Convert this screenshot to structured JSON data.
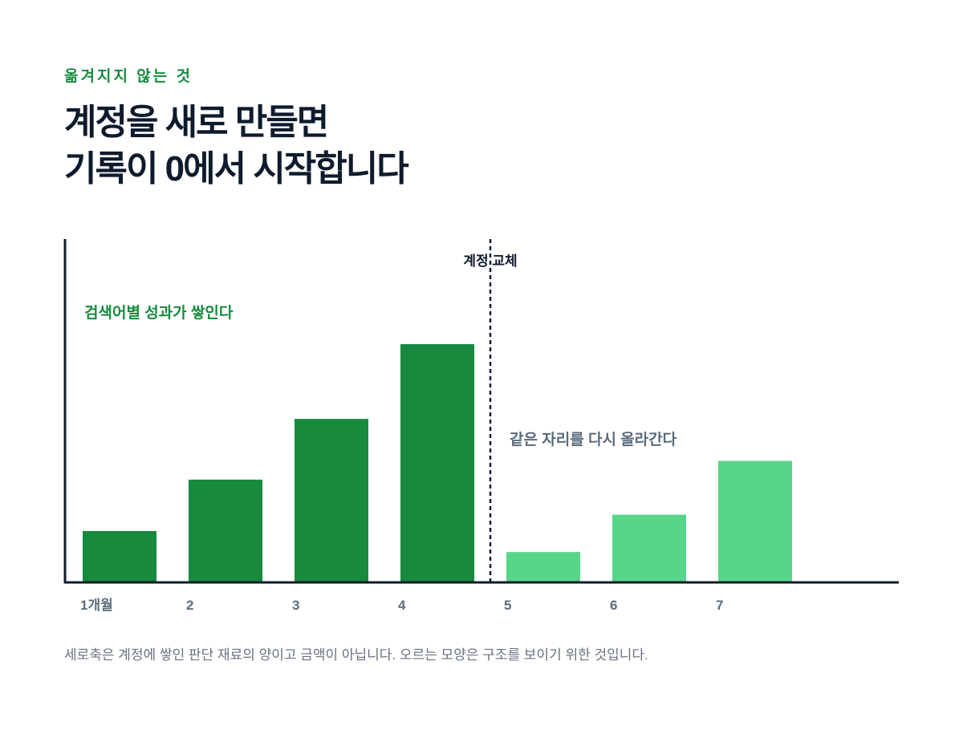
{
  "eyebrow": "옮겨지지 않는 것",
  "title_line1": "계정을 새로 만들면",
  "title_line2": "기록이 0에서 시작합니다",
  "footnote": "세로축은 계정에 쌓인 판단 재료의 양이고 금액이 아닙니다. 오르는 모양은 구조를 보이기 위한 것입니다.",
  "colors": {
    "dark_green": "#178a3e",
    "light_green": "#57d68a",
    "axis": "#0f1b2d",
    "muted_text": "#5b6b7c"
  },
  "chart_data": {
    "type": "bar",
    "categories": [
      "1개월",
      "2",
      "3",
      "4",
      "5",
      "6",
      "7"
    ],
    "values": [
      2.2,
      4.4,
      7.0,
      10.2,
      1.3,
      2.9,
      5.2
    ],
    "ylim": [
      0,
      14.7
    ],
    "series_groups": [
      {
        "label": "검색어별 성과가 쌓인다",
        "indices": [
          0,
          1,
          2,
          3
        ],
        "color": "#178a3e"
      },
      {
        "label": "같은 자리를 다시 올라간다",
        "indices": [
          4,
          5,
          6
        ],
        "color": "#57d68a"
      }
    ],
    "annotation": {
      "label": "계정 교체",
      "between": [
        3,
        4
      ]
    },
    "grid": false,
    "xlabel": "",
    "ylabel": ""
  }
}
